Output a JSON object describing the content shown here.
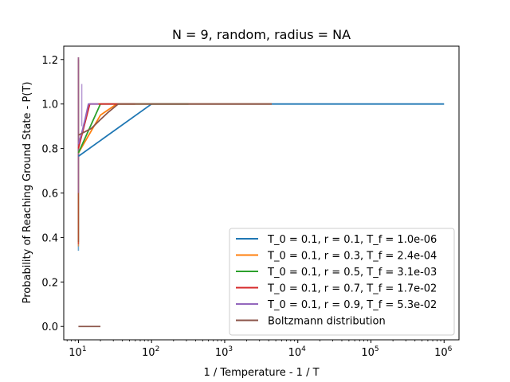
{
  "chart_data": {
    "type": "line",
    "title": "N = 9, random, radius = NA",
    "xlabel": "1 / Temperature - 1 / T",
    "ylabel": "Probability of Reaching Ground State - P(T)",
    "xscale": "log",
    "xlim": [
      6.3,
      1600000
    ],
    "ylim": [
      -0.06,
      1.26
    ],
    "xticks": [
      {
        "value": 10,
        "base": "10",
        "exp": "1"
      },
      {
        "value": 100,
        "base": "10",
        "exp": "2"
      },
      {
        "value": 1000,
        "base": "10",
        "exp": "3"
      },
      {
        "value": 10000,
        "base": "10",
        "exp": "4"
      },
      {
        "value": 100000,
        "base": "10",
        "exp": "5"
      },
      {
        "value": 1000000,
        "base": "10",
        "exp": "6"
      }
    ],
    "yticks": [
      {
        "value": 0.0,
        "label": "0.0"
      },
      {
        "value": 0.2,
        "label": "0.2"
      },
      {
        "value": 0.4,
        "label": "0.4"
      },
      {
        "value": 0.6,
        "label": "0.6"
      },
      {
        "value": 0.8,
        "label": "0.8"
      },
      {
        "value": 1.0,
        "label": "1.0"
      },
      {
        "value": 1.2,
        "label": "1.2"
      }
    ],
    "legend_position": "lower-right",
    "grid": false,
    "series": [
      {
        "name": "T_0 = 0.1, r = 0.1, T_f = 1.0e-06",
        "color": "#1f77b4",
        "points": [
          [
            10,
            0.765
          ],
          [
            100,
            1.0
          ],
          [
            1000,
            1.0
          ],
          [
            10000,
            1.0
          ],
          [
            100000,
            1.0
          ],
          [
            1000000,
            1.0
          ]
        ],
        "band": [
          [
            10,
            0.34,
            1.2
          ]
        ]
      },
      {
        "name": "T_0 = 0.1, r = 0.3, T_f = 2.4e-04",
        "color": "#ff7f0e",
        "points": [
          [
            10,
            0.78
          ],
          [
            20,
            0.95
          ],
          [
            33.3,
            1.0
          ],
          [
            100,
            1.0
          ],
          [
            1000,
            1.0
          ],
          [
            4400,
            1.0
          ]
        ],
        "band": [
          [
            10,
            0.36,
            1.2
          ]
        ]
      },
      {
        "name": "T_0 = 0.1, r = 0.5, T_f = 3.1e-03",
        "color": "#2ca02c",
        "points": [
          [
            10,
            0.78
          ],
          [
            20,
            1.0
          ],
          [
            40,
            1.0
          ],
          [
            80,
            1.0
          ],
          [
            160,
            1.0
          ],
          [
            320,
            1.0
          ]
        ],
        "band": [
          [
            10,
            0.38,
            1.21
          ]
        ]
      },
      {
        "name": "T_0 = 0.1, r = 0.7, T_f = 1.7e-02",
        "color": "#d62728",
        "points": [
          [
            10,
            0.8
          ],
          [
            14.3,
            1.0
          ],
          [
            20.4,
            1.0
          ],
          [
            29.2,
            1.0
          ],
          [
            41.6,
            1.0
          ],
          [
            59.5,
            1.0
          ]
        ],
        "band": [
          [
            10,
            0.37,
            1.21
          ]
        ]
      },
      {
        "name": "T_0 = 0.1, r = 0.9, T_f = 5.3e-02",
        "color": "#9467bd",
        "points": [
          [
            10,
            0.82
          ],
          [
            11.1,
            0.87
          ],
          [
            12.3,
            0.93
          ],
          [
            13.7,
            1.0
          ],
          [
            15.2,
            1.0
          ],
          [
            16.9,
            1.0
          ],
          [
            18.8,
            1.0
          ]
        ],
        "band": [
          [
            10,
            0.6,
            1.21
          ],
          [
            11.1,
            0.9,
            1.09
          ]
        ]
      },
      {
        "name": "Boltzmann distribution",
        "color": "#8c564b",
        "points": [
          [
            10,
            0.86
          ],
          [
            15,
            0.89
          ],
          [
            20,
            0.93
          ],
          [
            25,
            0.96
          ],
          [
            35,
            1.0
          ],
          [
            60,
            1.0
          ],
          [
            100,
            1.0
          ],
          [
            300,
            1.0
          ],
          [
            1000,
            1.0
          ],
          [
            4400,
            1.0
          ]
        ],
        "points2": [
          [
            10,
            0.0
          ],
          [
            20,
            0.0
          ]
        ]
      }
    ]
  }
}
